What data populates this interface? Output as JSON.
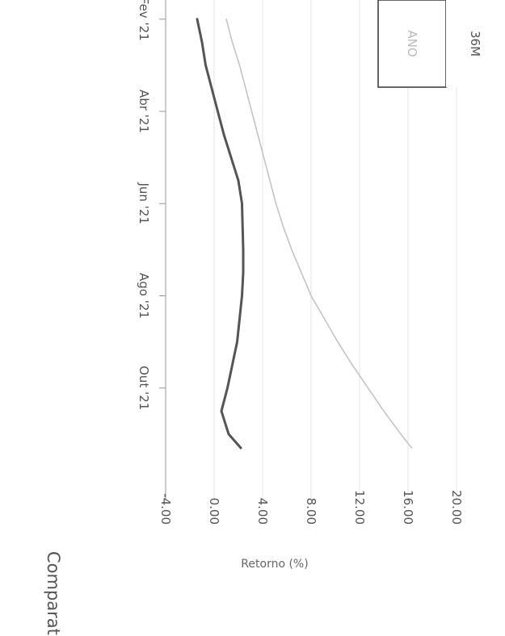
{
  "chart_data": {
    "type": "line",
    "title": "Comparativo",
    "ylabel": "Retorno (%)",
    "xlabel": "",
    "ylim": [
      -4,
      24
    ],
    "yticks": [
      "-4.00",
      "0.00",
      "4.00",
      "8.00",
      "12.00",
      "16.00",
      "20.00"
    ],
    "ytick_values": [
      -4,
      0,
      4,
      8,
      12,
      16,
      20
    ],
    "xticks": [
      "Fev '21",
      "Abr '21",
      "Jun '21",
      "Ago '21",
      "Out '21"
    ],
    "xtick_values": [
      0,
      2,
      4,
      6,
      8
    ],
    "xlim": [
      -0.1,
      9.3
    ],
    "grid": true,
    "series": [
      {
        "color": "#c4c4c4",
        "x": [
          0,
          0.5,
          1,
          1.5,
          2,
          2.5,
          3,
          3.5,
          4,
          4.5,
          5,
          5.5,
          6,
          6.5,
          7,
          7.5,
          8,
          8.5,
          9,
          9.3
        ],
        "y": [
          1.0,
          1.5,
          2.1,
          2.6,
          3.1,
          3.6,
          4.1,
          4.6,
          5.1,
          5.7,
          6.4,
          7.2,
          8.0,
          9.1,
          10.2,
          11.4,
          12.7,
          14.0,
          15.4,
          16.3
        ]
      },
      {
        "color": "#555555",
        "x": [
          0,
          0.5,
          1,
          1.5,
          2,
          2.5,
          3,
          3.5,
          4,
          5,
          5.5,
          6,
          6.5,
          7,
          7.5,
          8,
          8.5,
          9,
          9.3
        ],
        "y": [
          -1.4,
          -1.0,
          -0.7,
          -0.2,
          0.3,
          0.8,
          1.4,
          2.0,
          2.3,
          2.4,
          2.4,
          2.3,
          2.1,
          1.9,
          1.5,
          1.1,
          0.6,
          1.2,
          2.2
        ]
      }
    ]
  },
  "controls": {
    "buttons": [
      "ANO",
      "36M"
    ]
  }
}
